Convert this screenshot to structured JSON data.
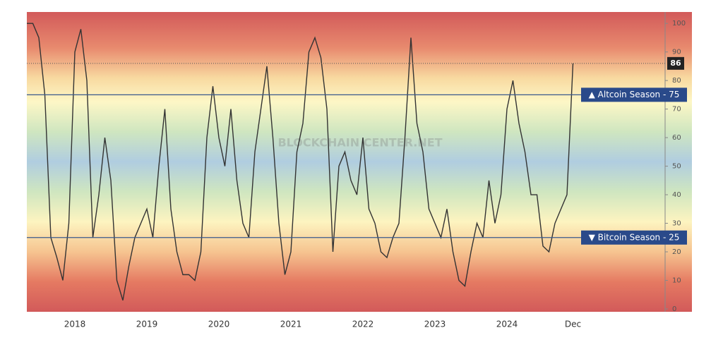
{
  "chart_data": {
    "type": "line",
    "watermark": "BLOCKCHAIN CENTER.NET",
    "categories": [
      null,
      null,
      null,
      null,
      null,
      null,
      null,
      null,
      "2018",
      null,
      null,
      null,
      null,
      null,
      null,
      null,
      null,
      null,
      null,
      null,
      "2019",
      null,
      null,
      null,
      null,
      null,
      null,
      null,
      null,
      null,
      null,
      null,
      "2020",
      null,
      null,
      null,
      null,
      null,
      null,
      null,
      null,
      null,
      null,
      null,
      "2021",
      null,
      null,
      null,
      null,
      null,
      null,
      null,
      null,
      null,
      null,
      null,
      "2022",
      null,
      null,
      null,
      null,
      null,
      null,
      null,
      null,
      null,
      null,
      null,
      "2023",
      null,
      null,
      null,
      null,
      null,
      null,
      null,
      null,
      null,
      null,
      null,
      "2024",
      null,
      null,
      null,
      null,
      null,
      null,
      null,
      null,
      null,
      null,
      "Dec"
    ],
    "values": [
      100,
      100,
      95,
      75,
      25,
      18,
      10,
      30,
      90,
      98,
      80,
      25,
      40,
      60,
      45,
      10,
      3,
      15,
      25,
      30,
      35,
      25,
      50,
      70,
      35,
      20,
      12,
      12,
      10,
      20,
      60,
      78,
      60,
      50,
      70,
      45,
      30,
      25,
      55,
      70,
      85,
      60,
      30,
      12,
      20,
      55,
      65,
      90,
      95,
      88,
      70,
      20,
      50,
      55,
      45,
      40,
      60,
      35,
      30,
      20,
      18,
      25,
      30,
      60,
      95,
      65,
      55,
      35,
      30,
      25,
      35,
      20,
      10,
      8,
      20,
      30,
      25,
      45,
      30,
      40,
      70,
      80,
      65,
      55,
      40,
      40,
      22,
      20,
      30,
      35,
      40,
      86
    ],
    "color": "#333333",
    "ylim": [
      -1,
      104
    ],
    "yticks": [
      0,
      10,
      20,
      30,
      40,
      50,
      60,
      70,
      80,
      90,
      100
    ],
    "annotations": [
      {
        "label": "▲ Altcoin Season - 75",
        "value": 75
      },
      {
        "label": "▼ Bitcoin Season - 25",
        "value": 25
      }
    ]
  }
}
